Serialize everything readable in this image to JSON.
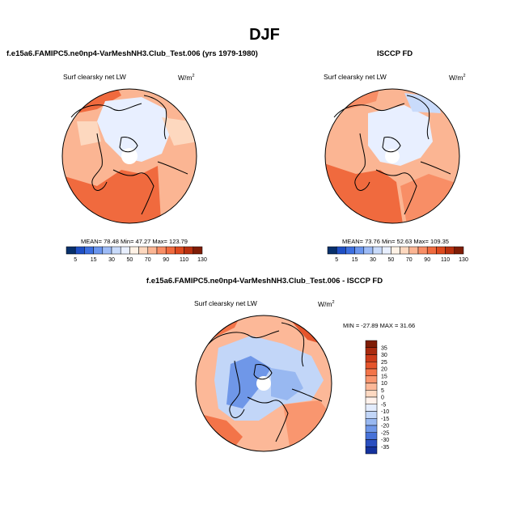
{
  "figure": {
    "title": "DJF",
    "diff_title": "f.e15a6.FAMIPC5.ne0np4-VarMeshNH3.Club_Test.006 - ISCCP FD"
  },
  "chart_data": [
    {
      "type": "heatmap",
      "title": "f.e15a6.FAMIPC5.ne0np4-VarMeshNH3.Club_Test.006 (yrs 1979-1980)",
      "variable": "Surf clearsky net LW",
      "units": "W/m",
      "units_sup": "2",
      "projection": "north-polar-stereographic",
      "stats": {
        "mean": "78.48",
        "min": "47.27",
        "max": "123.79",
        "text": "MEAN=  78.48  Min=  47.27  Max=  123.79"
      },
      "colorbar": {
        "orientation": "horizontal",
        "levels": [
          5,
          15,
          30,
          50,
          70,
          90,
          110,
          130
        ],
        "colors": [
          "#08306b",
          "#1f4fc4",
          "#3d6fe0",
          "#6a95ee",
          "#9dbbf6",
          "#c9dbfb",
          "#e8efff",
          "#fff2e6",
          "#fdd8bf",
          "#fbb593",
          "#f88e66",
          "#f06a3e",
          "#dd4a1f",
          "#b8300f",
          "#7f1d06"
        ]
      }
    },
    {
      "type": "heatmap",
      "title": "ISCCP FD",
      "variable": "Surf clearsky net LW",
      "units": "W/m",
      "units_sup": "2",
      "projection": "north-polar-stereographic",
      "stats": {
        "mean": "73.76",
        "min": "52.63",
        "max": "109.35",
        "text": "MEAN=  73.76  Min=  52.63  Max=  109.35"
      },
      "colorbar": {
        "orientation": "horizontal",
        "levels": [
          5,
          15,
          30,
          50,
          70,
          90,
          110,
          130
        ],
        "colors": [
          "#08306b",
          "#1f4fc4",
          "#3d6fe0",
          "#6a95ee",
          "#9dbbf6",
          "#c9dbfb",
          "#e8efff",
          "#fff2e6",
          "#fdd8bf",
          "#fbb593",
          "#f88e66",
          "#f06a3e",
          "#dd4a1f",
          "#b8300f",
          "#7f1d06"
        ]
      }
    },
    {
      "type": "heatmap",
      "title": "f.e15a6.FAMIPC5.ne0np4-VarMeshNH3.Club_Test.006 - ISCCP FD",
      "variable": "Surf clearsky net LW",
      "units": "W/m",
      "units_sup": "2",
      "projection": "north-polar-stereographic",
      "stats": {
        "min": "-27.89",
        "max": "31.66",
        "text": "MIN = -27.89 MAX = 31.66"
      },
      "colorbar": {
        "orientation": "vertical",
        "levels": [
          35,
          30,
          25,
          20,
          15,
          10,
          5,
          0,
          -5,
          -10,
          -15,
          -20,
          -25,
          -30,
          -35
        ],
        "colors": [
          "#7f1d06",
          "#a92a0f",
          "#cc3b1a",
          "#e5552c",
          "#f37449",
          "#f9966f",
          "#fcb898",
          "#fdd9c2",
          "#fff2ec",
          "#e3ecfd",
          "#c2d6f8",
          "#98b8f1",
          "#6f97e8",
          "#4772d8",
          "#2a4fc0",
          "#14329e"
        ]
      }
    }
  ]
}
